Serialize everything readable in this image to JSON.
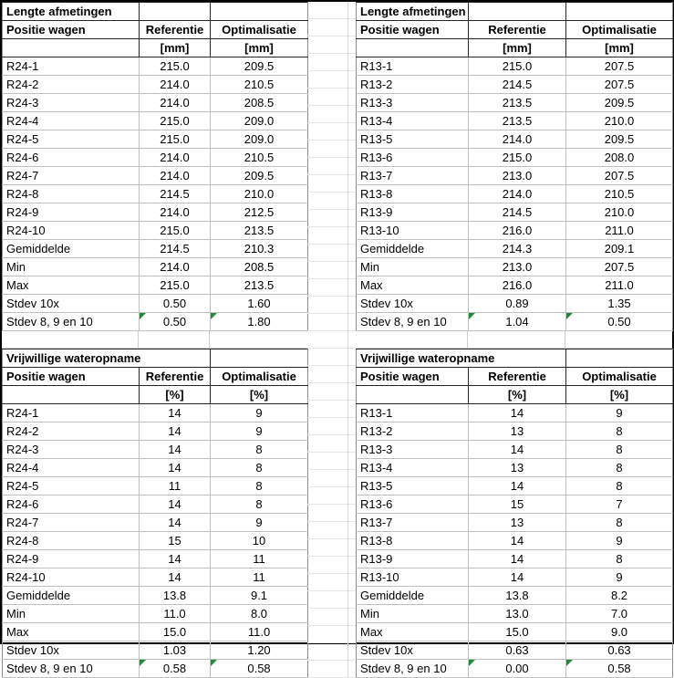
{
  "sheet": {
    "background": "#ffffff",
    "frame_color": "#000000",
    "grid_color": "#bfbfbf",
    "header_border_color": "#262626",
    "flag_color": "#1f8b37",
    "flag_icon": "error-indicator-triangle"
  },
  "tables": [
    {
      "id": "lengte-r24",
      "position": "top-left",
      "title": "Lengte afmetingen",
      "columns": [
        "Positie wagen",
        "Referentie",
        "Optimalisatie"
      ],
      "units": [
        "",
        "[mm]",
        "[mm]"
      ],
      "rows": [
        [
          "R24-1",
          "215.0",
          "209.5"
        ],
        [
          "R24-2",
          "214.0",
          "210.5"
        ],
        [
          "R24-3",
          "214.0",
          "208.5"
        ],
        [
          "R24-4",
          "215.0",
          "209.0"
        ],
        [
          "R24-5",
          "215.0",
          "209.0"
        ],
        [
          "R24-6",
          "214.0",
          "210.5"
        ],
        [
          "R24-7",
          "214.0",
          "209.5"
        ],
        [
          "R24-8",
          "214.5",
          "210.0"
        ],
        [
          "R24-9",
          "214.0",
          "212.5"
        ],
        [
          "R24-10",
          "215.0",
          "213.5"
        ],
        [
          "Gemiddelde",
          "214.5",
          "210.3"
        ],
        [
          "Min",
          "214.0",
          "208.5"
        ],
        [
          "Max",
          "215.0",
          "213.5"
        ],
        [
          "Stdev 10x",
          "0.50",
          "1.60"
        ],
        [
          "Stdev 8, 9 en 10",
          "0.50",
          "1.80"
        ]
      ],
      "flag_row_label": "Stdev 8, 9 en 10"
    },
    {
      "id": "lengte-r13",
      "position": "top-right",
      "title": "Lengte afmetingen",
      "columns": [
        "Positie wagen",
        "Referentie",
        "Optimalisatie"
      ],
      "units": [
        "",
        "[mm]",
        "[mm]"
      ],
      "rows": [
        [
          "R13-1",
          "215.0",
          "207.5"
        ],
        [
          "R13-2",
          "214.5",
          "207.5"
        ],
        [
          "R13-3",
          "213.5",
          "209.5"
        ],
        [
          "R13-4",
          "213.5",
          "210.0"
        ],
        [
          "R13-5",
          "214.0",
          "209.5"
        ],
        [
          "R13-6",
          "215.0",
          "208.0"
        ],
        [
          "R13-7",
          "213.0",
          "207.5"
        ],
        [
          "R13-8",
          "214.0",
          "210.5"
        ],
        [
          "R13-9",
          "214.5",
          "210.0"
        ],
        [
          "R13-10",
          "216.0",
          "211.0"
        ],
        [
          "Gemiddelde",
          "214.3",
          "209.1"
        ],
        [
          "Min",
          "213.0",
          "207.5"
        ],
        [
          "Max",
          "216.0",
          "211.0"
        ],
        [
          "Stdev 10x",
          "0.89",
          "1.35"
        ],
        [
          "Stdev 8, 9 en 10",
          "1.04",
          "0.50"
        ]
      ],
      "flag_row_label": "Stdev 8, 9 en 10"
    },
    {
      "id": "wateropname-r24",
      "position": "bottom-left",
      "title": "Vrijwillige wateropname",
      "columns": [
        "Positie wagen",
        "Referentie",
        "Optimalisatie"
      ],
      "units": [
        "",
        "[%]",
        "[%]"
      ],
      "rows": [
        [
          "R24-1",
          "14",
          "9"
        ],
        [
          "R24-2",
          "14",
          "9"
        ],
        [
          "R24-3",
          "14",
          "8"
        ],
        [
          "R24-4",
          "14",
          "8"
        ],
        [
          "R24-5",
          "11",
          "8"
        ],
        [
          "R24-6",
          "14",
          "8"
        ],
        [
          "R24-7",
          "14",
          "9"
        ],
        [
          "R24-8",
          "15",
          "10"
        ],
        [
          "R24-9",
          "14",
          "11"
        ],
        [
          "R24-10",
          "14",
          "11"
        ],
        [
          "Gemiddelde",
          "13.8",
          "9.1"
        ],
        [
          "Min",
          "11.0",
          "8.0"
        ],
        [
          "Max",
          "15.0",
          "11.0"
        ],
        [
          "Stdev 10x",
          "1.03",
          "1.20"
        ],
        [
          "Stdev 8, 9 en 10",
          "0.58",
          "0.58"
        ]
      ],
      "flag_row_label": "Stdev 8, 9 en 10"
    },
    {
      "id": "wateropname-r13",
      "position": "bottom-right",
      "title": "Vrijwillige wateropname",
      "columns": [
        "Positie wagen",
        "Referentie",
        "Optimalisatie"
      ],
      "units": [
        "",
        "[%]",
        "[%]"
      ],
      "rows": [
        [
          "R13-1",
          "14",
          "9"
        ],
        [
          "R13-2",
          "13",
          "8"
        ],
        [
          "R13-3",
          "14",
          "8"
        ],
        [
          "R13-4",
          "13",
          "8"
        ],
        [
          "R13-5",
          "14",
          "8"
        ],
        [
          "R13-6",
          "15",
          "7"
        ],
        [
          "R13-7",
          "13",
          "8"
        ],
        [
          "R13-8",
          "14",
          "9"
        ],
        [
          "R13-9",
          "14",
          "8"
        ],
        [
          "R13-10",
          "14",
          "9"
        ],
        [
          "Gemiddelde",
          "13.8",
          "8.2"
        ],
        [
          "Min",
          "13.0",
          "7.0"
        ],
        [
          "Max",
          "15.0",
          "9.0"
        ],
        [
          "Stdev 10x",
          "0.63",
          "0.63"
        ],
        [
          "Stdev 8, 9 en 10",
          "0.00",
          "0.58"
        ]
      ],
      "flag_row_label": "Stdev 8, 9 en 10"
    }
  ]
}
